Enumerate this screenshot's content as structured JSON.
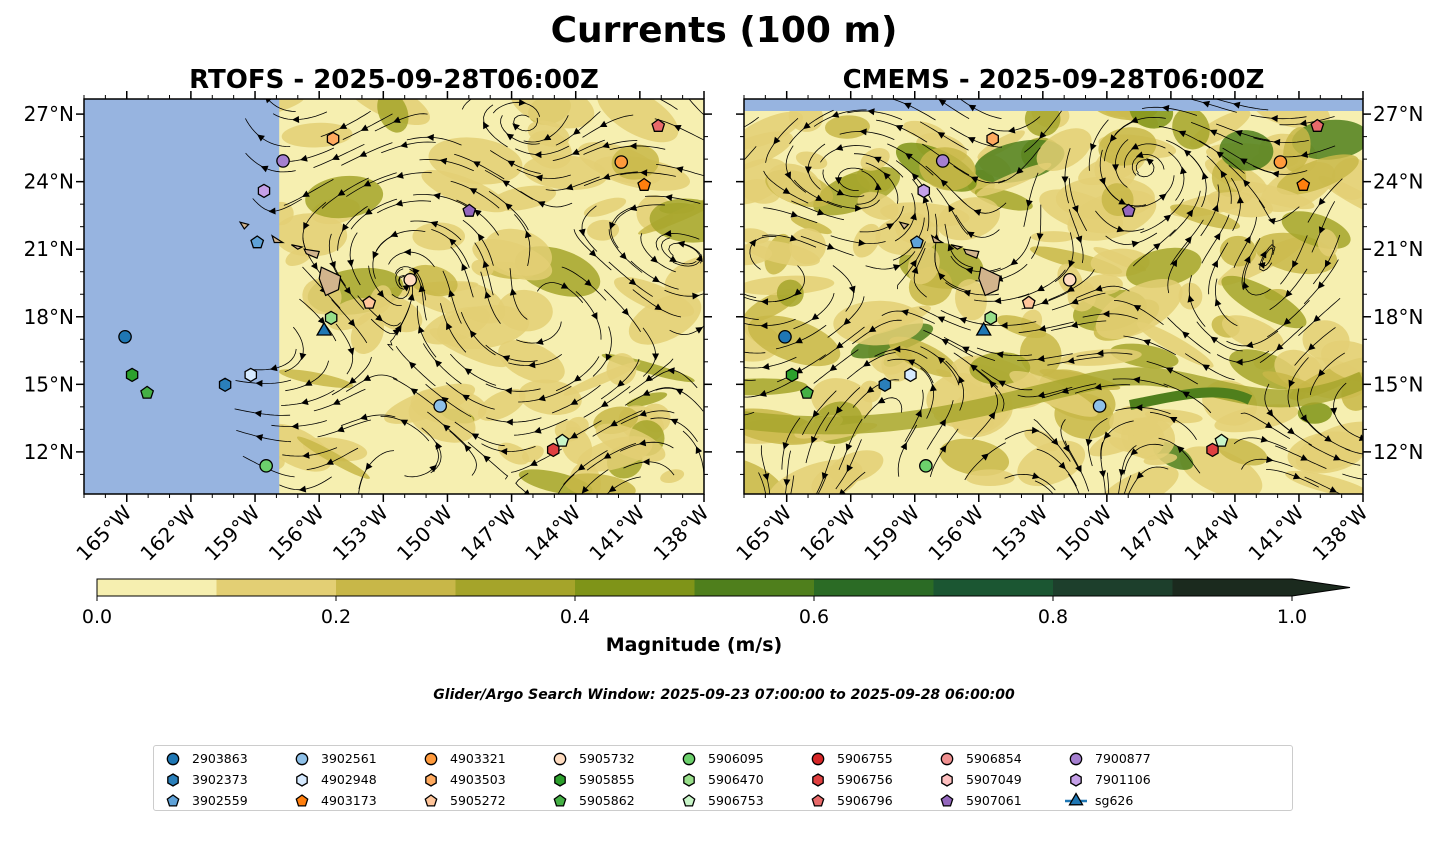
{
  "title": "Currents (100 m)",
  "panels": [
    {
      "id": "rtofs",
      "title": "RTOFS - 2025-09-28T06:00Z",
      "mask": "west"
    },
    {
      "id": "cmems",
      "title": "CMEMS - 2025-09-28T06:00Z",
      "mask": "north"
    }
  ],
  "axes": {
    "lon_range": [
      -167.0,
      -138.0
    ],
    "lat_range": [
      10.13,
      27.67
    ],
    "lon_ticks": [
      -165,
      -162,
      -159,
      -156,
      -153,
      -150,
      -147,
      -144,
      -141,
      -138
    ],
    "lon_labels": [
      "165°W",
      "162°W",
      "159°W",
      "156°W",
      "153°W",
      "150°W",
      "147°W",
      "144°W",
      "141°W",
      "138°W"
    ],
    "lat_ticks": [
      27,
      24,
      21,
      18,
      15,
      12
    ],
    "lat_labels": [
      "27°N",
      "24°N",
      "21°N",
      "18°N",
      "15°N",
      "12°N"
    ]
  },
  "colorbar": {
    "label": "Magnitude (m/s)",
    "levels": [
      0,
      0.1,
      0.2,
      0.3,
      0.4,
      0.5,
      0.6,
      0.7,
      0.8,
      0.9,
      1.0
    ],
    "tick_values": [
      0,
      0.2,
      0.4,
      0.6,
      0.8,
      1.0
    ],
    "tick_labels": [
      "0.0",
      "0.2",
      "0.4",
      "0.6",
      "0.8",
      "1.0"
    ],
    "colors": [
      "#f6efb0",
      "#e3cf74",
      "#c8b748",
      "#a5a42a",
      "#7f9418",
      "#4f7f1c",
      "#2b6b25",
      "#1b5632",
      "#1d3f2c",
      "#1b2a1e"
    ],
    "extend": "max"
  },
  "search_window": "Glider/Argo Search Window: 2025-09-23 07:00:00 to 2025-09-28 06:00:00",
  "colors": {
    "land": "#d2b48c",
    "mask": "#97b4e0"
  },
  "platforms": [
    {
      "id": "2903863",
      "marker": "circle",
      "color": "#1f77b4",
      "lon": -165.08,
      "lat": 17.11
    },
    {
      "id": "3902373",
      "marker": "hexagon",
      "color": "#2a7fba",
      "lon": -160.4,
      "lat": 14.98
    },
    {
      "id": "3902559",
      "marker": "pentagon",
      "color": "#5fa2d8",
      "lon": -158.9,
      "lat": 21.3
    },
    {
      "id": "3902561",
      "marker": "circle",
      "color": "#8ec0e8",
      "lon": -150.34,
      "lat": 14.04
    },
    {
      "id": "4902948",
      "marker": "hexagon",
      "color": "#d6eaff",
      "lon": -159.2,
      "lat": 15.42
    },
    {
      "id": "4903173",
      "marker": "pentagon",
      "color": "#ff7f0e",
      "lon": -140.8,
      "lat": 23.85
    },
    {
      "id": "4903321",
      "marker": "circle",
      "color": "#ff9a3c",
      "lon": -141.87,
      "lat": 24.87
    },
    {
      "id": "4903503",
      "marker": "hexagon",
      "color": "#ffaa5f",
      "lon": -155.35,
      "lat": 25.9
    },
    {
      "id": "5905272",
      "marker": "pentagon",
      "color": "#ffc59a",
      "lon": -153.66,
      "lat": 18.62
    },
    {
      "id": "5905732",
      "marker": "circle",
      "color": "#ffdcc0",
      "lon": -151.74,
      "lat": 19.64
    },
    {
      "id": "5905855",
      "marker": "hexagon",
      "color": "#2ca02c",
      "lon": -164.75,
      "lat": 15.42
    },
    {
      "id": "5905862",
      "marker": "pentagon",
      "color": "#45b045",
      "lon": -164.05,
      "lat": 14.62
    },
    {
      "id": "5906095",
      "marker": "circle",
      "color": "#6cd06c",
      "lon": -158.48,
      "lat": 11.38
    },
    {
      "id": "5906470",
      "marker": "hexagon",
      "color": "#98df8a",
      "lon": -155.44,
      "lat": 17.95
    },
    {
      "id": "5906753",
      "marker": "pentagon",
      "color": "#c8f5c8",
      "lon": -144.63,
      "lat": 12.49
    },
    {
      "id": "5906755",
      "marker": "circle",
      "color": "#d62728",
      "lon": null,
      "lat": null
    },
    {
      "id": "5906756",
      "marker": "hexagon",
      "color": "#e04040",
      "lon": -145.05,
      "lat": 12.09
    },
    {
      "id": "5906796",
      "marker": "pentagon",
      "color": "#e86a6a",
      "lon": -140.14,
      "lat": 26.47
    },
    {
      "id": "5906854",
      "marker": "circle",
      "color": "#f09090",
      "lon": null,
      "lat": null
    },
    {
      "id": "5907049",
      "marker": "hexagon",
      "color": "#ffc0c0",
      "lon": null,
      "lat": null
    },
    {
      "id": "5907061",
      "marker": "pentagon",
      "color": "#9467bd",
      "lon": -148.98,
      "lat": 22.7
    },
    {
      "id": "7900877",
      "marker": "circle",
      "color": "#a57fd0",
      "lon": -157.69,
      "lat": 24.92
    },
    {
      "id": "7901106",
      "marker": "hexagon",
      "color": "#c5a0e8",
      "lon": -158.58,
      "lat": 23.59
    },
    {
      "id": "sg626",
      "marker": "triangle",
      "color": "#1f77b4",
      "lon": -155.77,
      "lat": 17.37
    }
  ]
}
